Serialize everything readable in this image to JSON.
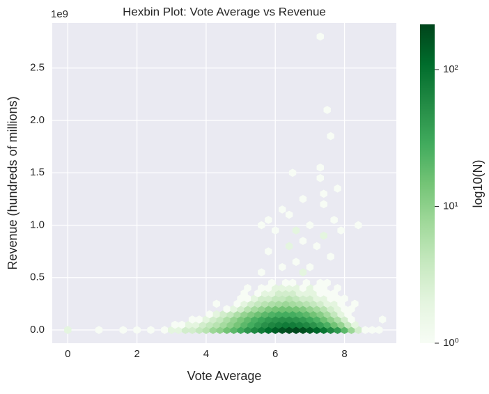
{
  "chart_data": {
    "type": "hexbin",
    "title": "Hexbin Plot: Vote Average vs Revenue",
    "x_label": "Vote Average",
    "y_label": "Revenue (hundreds of millions)",
    "y_offset_label": "1e9",
    "colorbar_label": "log10(N)",
    "xlim": [
      -0.45,
      9.5
    ],
    "ylim": [
      -0.126,
      2.93
    ],
    "xticks": [
      0,
      2,
      4,
      6,
      8
    ],
    "yticks": [
      {
        "value": 0,
        "label": "0.0"
      },
      0.5,
      {
        "value": 1,
        "label": "1.0"
      },
      1.5,
      {
        "value": 2,
        "label": "2.0"
      },
      2.5
    ],
    "clim": [
      1,
      214
    ],
    "color_scale": "log",
    "cticks": [
      {
        "value": 1,
        "label": "10⁰"
      },
      {
        "value": 10,
        "label": "10¹"
      },
      {
        "value": 100,
        "label": "10²"
      }
    ],
    "colormap": [
      "#f7fcf5",
      "#e5f5e0",
      "#c7e9c0",
      "#a1d99b",
      "#74c476",
      "#41ab5d",
      "#238b45",
      "#006d2c",
      "#00441b"
    ],
    "grid": true,
    "rows": [
      {
        "y": 0,
        "x": [
          0,
          0.9,
          1.6,
          2.0,
          2.4,
          2.8,
          3.0,
          3.2,
          3.4,
          3.6,
          3.8,
          4.0,
          4.2,
          4.4,
          4.6,
          4.8,
          5.0,
          5.2,
          5.4,
          5.6,
          5.8,
          6.0,
          6.2,
          6.4,
          6.6,
          6.8,
          7.0,
          7.2,
          7.4,
          7.6,
          7.8,
          8.0,
          8.2,
          8.4,
          8.6,
          8.8,
          9.0
        ],
        "values": [
          2,
          1,
          1,
          1,
          1,
          1,
          2,
          2,
          3,
          3,
          4,
          5,
          8,
          10,
          15,
          20,
          30,
          45,
          60,
          80,
          110,
          140,
          170,
          190,
          200,
          180,
          150,
          120,
          90,
          60,
          40,
          20,
          8,
          3,
          1,
          1,
          1
        ]
      },
      {
        "y": 0.05,
        "x": [
          3.1,
          3.3,
          3.5,
          3.7,
          3.9,
          4.1,
          4.3,
          4.5,
          4.7,
          4.9,
          5.1,
          5.3,
          5.5,
          5.7,
          5.9,
          6.1,
          6.3,
          6.5,
          6.7,
          6.9,
          7.1,
          7.3,
          7.5,
          7.7,
          7.9,
          8.1,
          8.3
        ],
        "values": [
          1,
          1,
          2,
          2,
          3,
          4,
          5,
          7,
          10,
          14,
          20,
          28,
          38,
          50,
          62,
          72,
          80,
          78,
          70,
          60,
          48,
          36,
          25,
          15,
          9,
          4,
          2
        ]
      },
      {
        "y": 0.1,
        "x": [
          3.6,
          3.8,
          4.0,
          4.2,
          4.4,
          4.6,
          4.8,
          5.0,
          5.2,
          5.4,
          5.6,
          5.8,
          6.0,
          6.2,
          6.4,
          6.6,
          6.8,
          7.0,
          7.2,
          7.4,
          7.6,
          7.8,
          8.0,
          8.2,
          9.1
        ],
        "values": [
          1,
          1,
          2,
          3,
          4,
          6,
          9,
          13,
          18,
          25,
          32,
          40,
          46,
          50,
          50,
          46,
          40,
          32,
          24,
          16,
          10,
          6,
          3,
          1,
          1
        ]
      },
      {
        "y": 0.15,
        "x": [
          4.1,
          4.3,
          4.5,
          4.7,
          4.9,
          5.1,
          5.3,
          5.5,
          5.7,
          5.9,
          6.1,
          6.3,
          6.5,
          6.7,
          6.9,
          7.1,
          7.3,
          7.5,
          7.7,
          7.9,
          8.1
        ],
        "values": [
          1,
          2,
          3,
          4,
          6,
          9,
          12,
          16,
          20,
          24,
          27,
          28,
          27,
          24,
          20,
          15,
          11,
          7,
          4,
          2,
          1
        ]
      },
      {
        "y": 0.2,
        "x": [
          4.6,
          4.8,
          5.0,
          5.2,
          5.4,
          5.6,
          5.8,
          6.0,
          6.2,
          6.4,
          6.6,
          6.8,
          7.0,
          7.2,
          7.4,
          7.6,
          7.8,
          8.0,
          8.2
        ],
        "values": [
          1,
          2,
          3,
          5,
          7,
          9,
          12,
          14,
          15,
          15,
          14,
          12,
          9,
          7,
          5,
          3,
          2,
          1,
          1
        ]
      },
      {
        "y": 0.25,
        "x": [
          4.3,
          4.9,
          5.1,
          5.3,
          5.5,
          5.7,
          5.9,
          6.1,
          6.3,
          6.5,
          6.7,
          6.9,
          7.1,
          7.3,
          7.5,
          7.7,
          7.9,
          8.3
        ],
        "values": [
          1,
          1,
          2,
          3,
          4,
          5,
          6,
          7,
          8,
          7,
          6,
          5,
          4,
          3,
          2,
          2,
          1,
          1
        ]
      },
      {
        "y": 0.3,
        "x": [
          5.0,
          5.2,
          5.4,
          5.6,
          5.8,
          6.0,
          6.2,
          6.4,
          6.6,
          6.8,
          7.0,
          7.2,
          7.4,
          7.6,
          7.8,
          8.0
        ],
        "values": [
          1,
          1,
          2,
          3,
          3,
          4,
          4,
          5,
          4,
          3,
          3,
          2,
          2,
          1,
          1,
          1
        ]
      },
      {
        "y": 0.35,
        "x": [
          5.1,
          5.5,
          5.7,
          5.9,
          6.1,
          6.3,
          6.5,
          6.7,
          6.9,
          7.1,
          7.3,
          7.5,
          7.7
        ],
        "values": [
          1,
          1,
          2,
          2,
          3,
          3,
          3,
          2,
          2,
          2,
          1,
          1,
          1
        ]
      },
      {
        "y": 0.4,
        "x": [
          5.2,
          5.6,
          5.8,
          6.0,
          6.2,
          6.4,
          6.6,
          6.8,
          7.0,
          7.2,
          7.4,
          7.8
        ],
        "values": [
          1,
          1,
          1,
          2,
          2,
          2,
          2,
          1,
          2,
          1,
          1,
          1
        ]
      },
      {
        "y": 0.45,
        "x": [
          5.9,
          6.3,
          6.5,
          6.9,
          7.3,
          7.5
        ],
        "values": [
          1,
          1,
          1,
          1,
          1,
          1
        ]
      },
      {
        "y": 0.55,
        "x": [
          5.6,
          6.8
        ],
        "values": [
          1,
          2
        ]
      },
      {
        "y": 0.6,
        "x": [
          6.2,
          7.0
        ],
        "values": [
          1,
          1
        ]
      },
      {
        "y": 0.65,
        "x": [
          6.6
        ],
        "values": [
          1
        ]
      },
      {
        "y": 0.7,
        "x": [
          7.6
        ],
        "values": [
          1
        ]
      },
      {
        "y": 0.75,
        "x": [
          5.8
        ],
        "values": [
          1
        ]
      },
      {
        "y": 0.8,
        "x": [
          6.4,
          7.2
        ],
        "values": [
          2,
          1
        ]
      },
      {
        "y": 0.85,
        "x": [
          6.8
        ],
        "values": [
          1
        ]
      },
      {
        "y": 0.9,
        "x": [
          7.4
        ],
        "values": [
          2
        ]
      },
      {
        "y": 0.95,
        "x": [
          6.0,
          6.6,
          7.9
        ],
        "values": [
          1,
          2,
          1
        ]
      },
      {
        "y": 1.0,
        "x": [
          5.6,
          7.0,
          8.4
        ],
        "values": [
          1,
          1,
          1
        ]
      },
      {
        "y": 1.05,
        "x": [
          5.8,
          7.7
        ],
        "values": [
          1,
          1
        ]
      },
      {
        "y": 1.1,
        "x": [
          6.4
        ],
        "values": [
          1
        ]
      },
      {
        "y": 1.15,
        "x": [
          6.2
        ],
        "values": [
          1
        ]
      },
      {
        "y": 1.2,
        "x": [
          7.4
        ],
        "values": [
          1
        ]
      },
      {
        "y": 1.25,
        "x": [
          6.8
        ],
        "values": [
          1
        ]
      },
      {
        "y": 1.3,
        "x": [
          7.4
        ],
        "values": [
          1
        ]
      },
      {
        "y": 1.35,
        "x": [
          7.8
        ],
        "values": [
          1
        ]
      },
      {
        "y": 1.45,
        "x": [
          7.3
        ],
        "values": [
          1
        ]
      },
      {
        "y": 1.5,
        "x": [
          6.5
        ],
        "values": [
          1
        ]
      },
      {
        "y": 1.55,
        "x": [
          7.3
        ],
        "values": [
          1
        ]
      },
      {
        "y": 1.85,
        "x": [
          7.6
        ],
        "values": [
          1
        ]
      },
      {
        "y": 2.1,
        "x": [
          7.5
        ],
        "values": [
          1
        ]
      },
      {
        "y": 2.8,
        "x": [
          7.3
        ],
        "values": [
          1
        ]
      }
    ]
  }
}
